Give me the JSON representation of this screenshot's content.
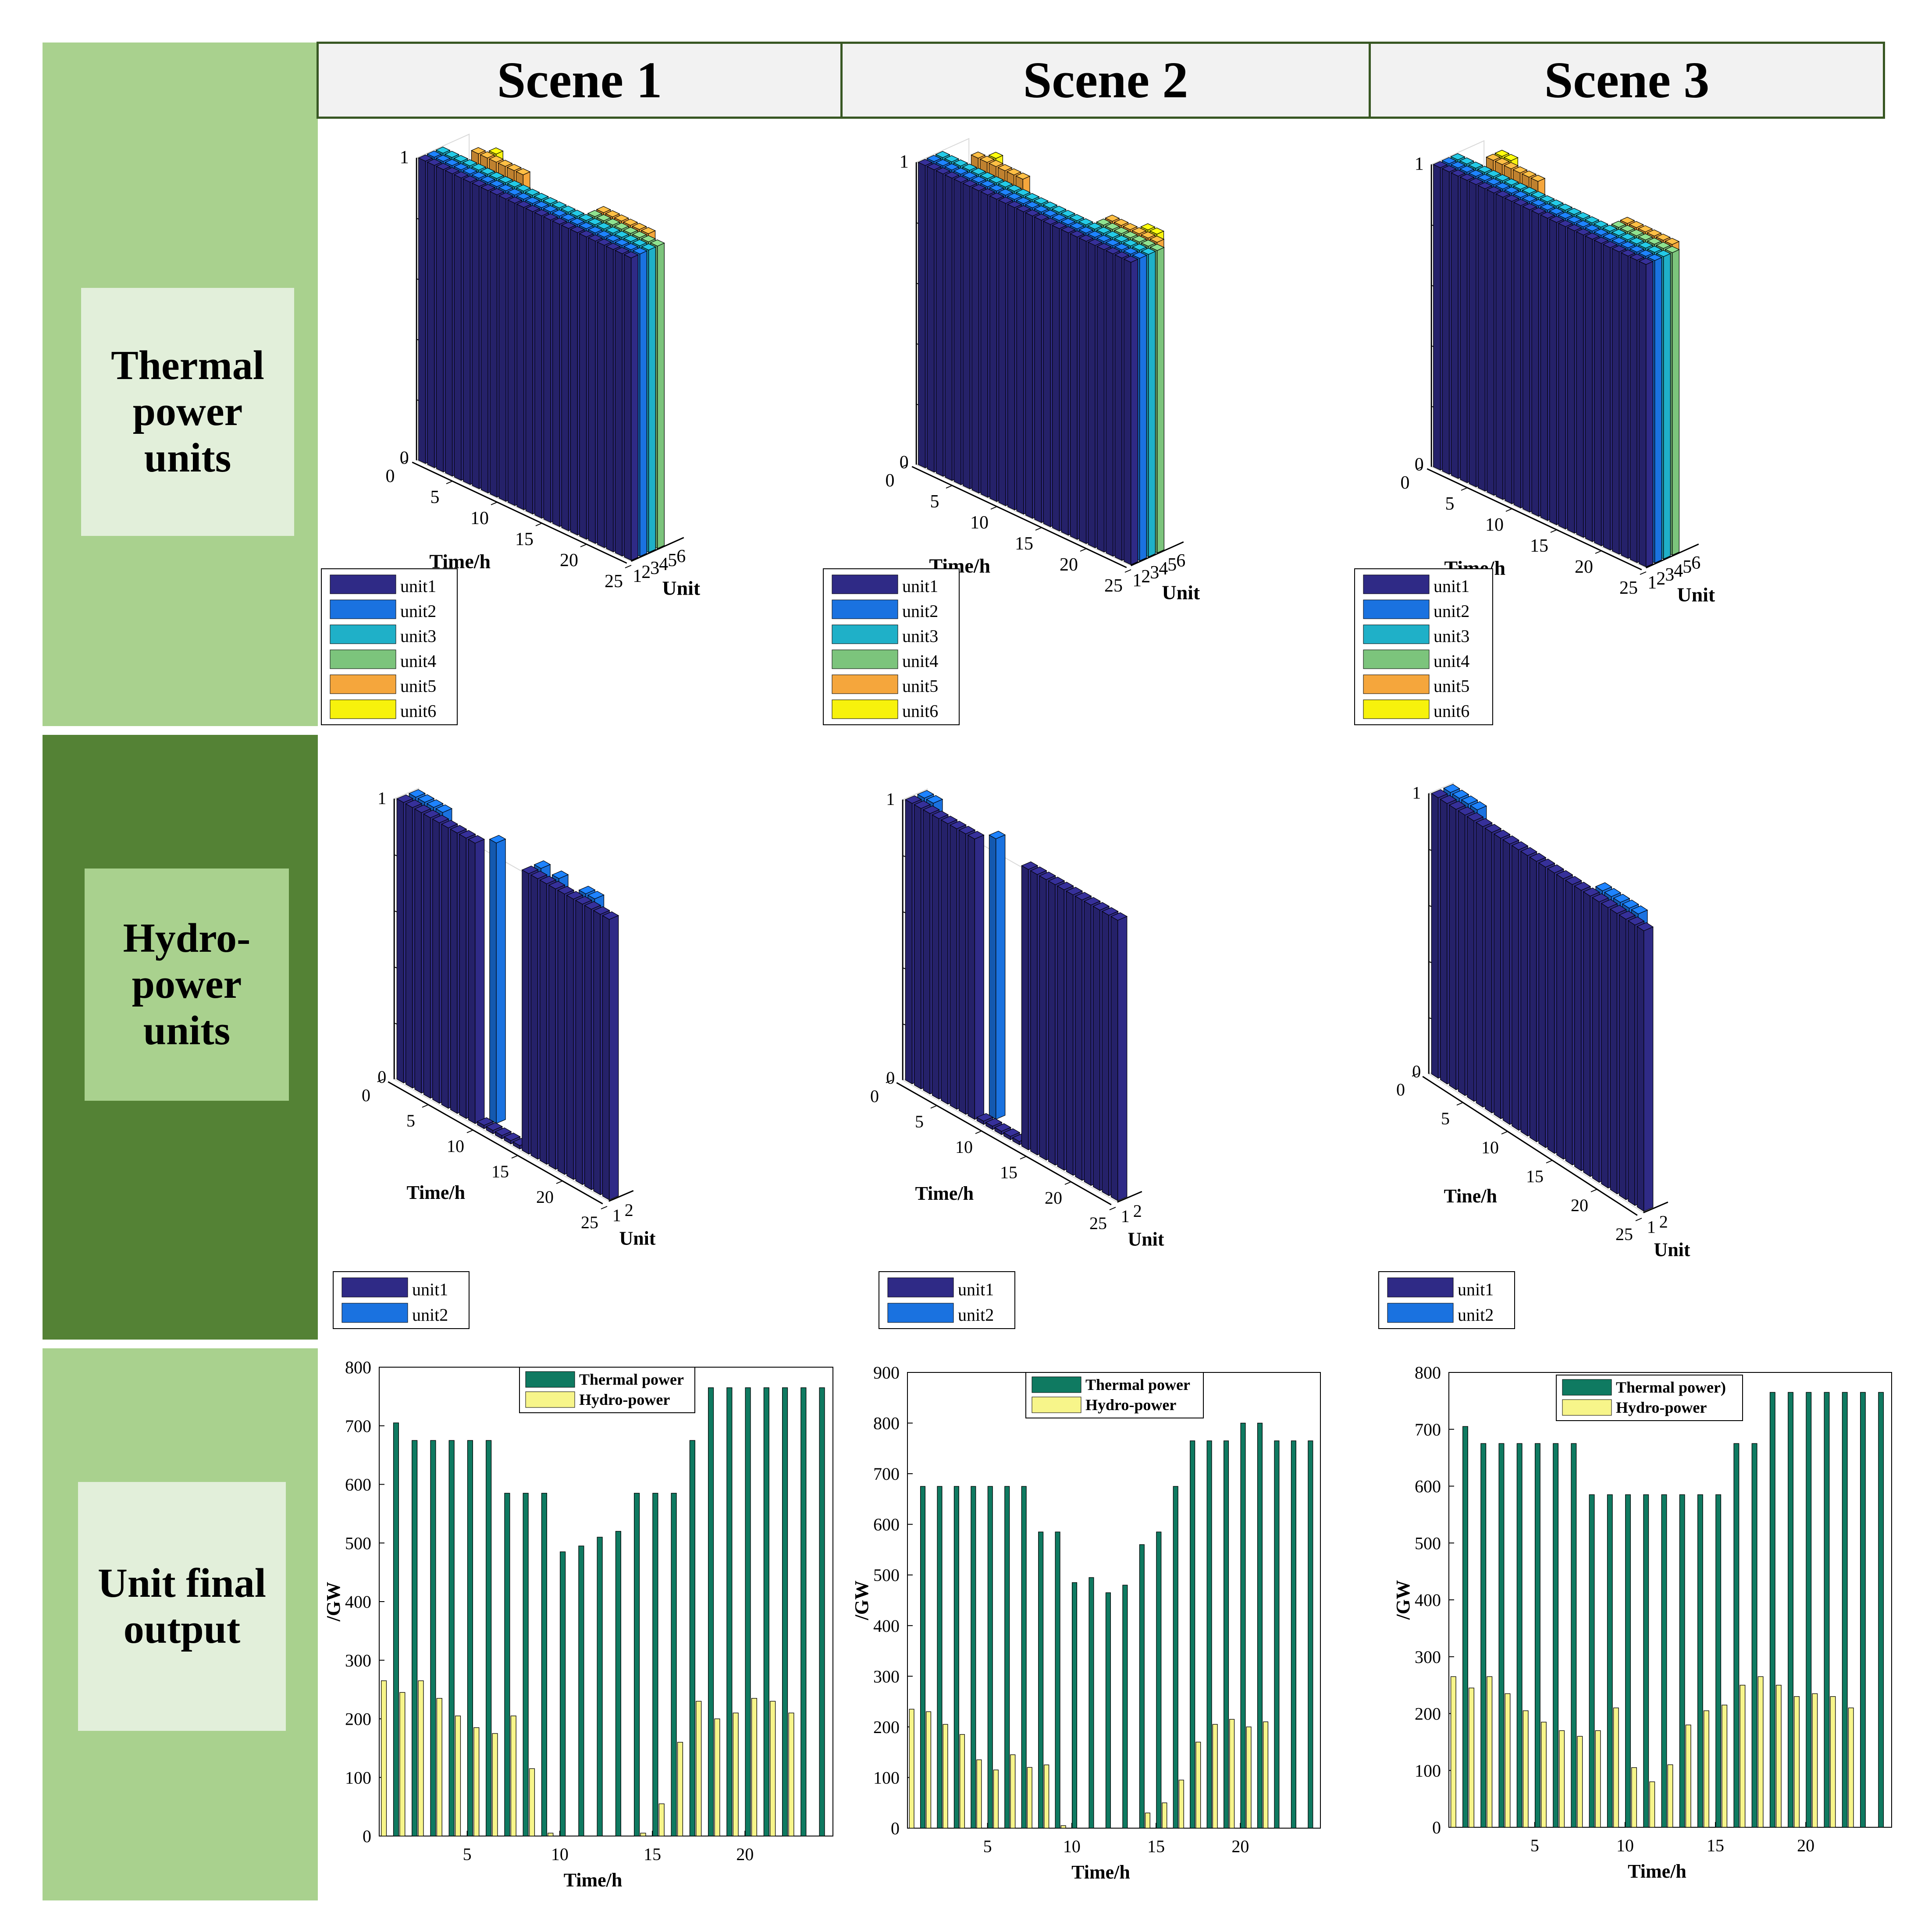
{
  "scenes": [
    "Scene 1",
    "Scene 2",
    "Scene 3"
  ],
  "rows": [
    {
      "label": "Thermal power units",
      "lines": [
        "Thermal",
        "power",
        "units"
      ]
    },
    {
      "label": "Hydro-power units",
      "lines": [
        "Hydro-",
        "power",
        "units"
      ]
    },
    {
      "label": "Unit final output",
      "lines": [
        "Unit final",
        "output"
      ]
    }
  ],
  "colors": {
    "row_light": "#a9d18e",
    "row_dark": "#548235",
    "box_light": "#e2efda",
    "header_bg": "#f2f2f2",
    "unit1": "#2f2a86",
    "unit2": "#1a72e0",
    "unit3": "#1fb0c8",
    "unit4": "#7cc47c",
    "unit5": "#f5a63c",
    "unit6": "#f7f20c",
    "thermal": "#0f7a61",
    "hydro": "#f7f58a"
  },
  "chart_data": [
    {
      "id": "thermal-scene1",
      "type": "bar3d",
      "scene": "Scene 1",
      "x_label": "Time/h",
      "y_label": "Unit",
      "x_ticks": [
        "0",
        "5",
        "10",
        "15",
        "20",
        "25"
      ],
      "y_ticks": [
        "1",
        "2",
        "3",
        "4",
        "5",
        "6"
      ],
      "z_ticks": [
        "0",
        "1"
      ],
      "legend": [
        "unit1",
        "unit2",
        "unit3",
        "unit4",
        "unit5",
        "unit6"
      ],
      "hours": 24,
      "on": {
        "unit1": [
          1,
          24
        ],
        "unit2": [
          1,
          24
        ],
        "unit3": [
          1,
          24
        ],
        "unit4": [
          17,
          24
        ],
        "unit5": [
          [
            3,
            8
          ],
          [
            17,
            22
          ]
        ],
        "unit6": [
          [
            4,
            4
          ]
        ]
      }
    },
    {
      "id": "thermal-scene2",
      "type": "bar3d",
      "scene": "Scene 2",
      "x_label": "Time/h",
      "y_label": "Unit",
      "x_ticks": [
        "0",
        "5",
        "10",
        "15",
        "20",
        "25"
      ],
      "y_ticks": [
        "1",
        "2",
        "3",
        "4",
        "5",
        "6"
      ],
      "z_ticks": [
        "0",
        "1"
      ],
      "legend": [
        "unit1",
        "unit2",
        "unit3",
        "unit4",
        "unit5",
        "unit6"
      ],
      "hours": 24,
      "on": {
        "unit1": [
          1,
          24
        ],
        "unit2": [
          1,
          24
        ],
        "unit3": [
          1,
          24
        ],
        "unit4": [
          18,
          24
        ],
        "unit5": [
          [
            3,
            8
          ],
          [
            18,
            23
          ]
        ],
        "unit6": [
          [
            4,
            4
          ],
          [
            21,
            22
          ]
        ]
      }
    },
    {
      "id": "thermal-scene3",
      "type": "bar3d",
      "scene": "Scene 3",
      "x_label": "Time/h",
      "y_label": "Unit",
      "x_ticks": [
        "0",
        "5",
        "10",
        "15",
        "20",
        "25"
      ],
      "y_ticks": [
        "1",
        "2",
        "3",
        "4",
        "5",
        "6"
      ],
      "z_ticks": [
        "0",
        "1"
      ],
      "legend": [
        "unit1",
        "unit2",
        "unit3",
        "unit4",
        "unit5",
        "unit6"
      ],
      "hours": 24,
      "on": {
        "unit1": [
          1,
          24
        ],
        "unit2": [
          1,
          24
        ],
        "unit3": [
          1,
          24
        ],
        "unit4": [
          18,
          24
        ],
        "unit5": [
          [
            3,
            8
          ],
          [
            18,
            23
          ]
        ],
        "unit6": [
          [
            3,
            4
          ]
        ]
      }
    },
    {
      "id": "hydro-scene1",
      "type": "bar3d",
      "scene": "Scene 1",
      "x_label": "Time/h",
      "y_label": "Unit",
      "x_ticks": [
        "0",
        "5",
        "10",
        "15",
        "20",
        "25"
      ],
      "y_ticks": [
        "1",
        "2"
      ],
      "z_ticks": [
        "0",
        "1"
      ],
      "legend": [
        "unit1",
        "unit2"
      ],
      "hours": 24,
      "on": {
        "unit1": [
          [
            1,
            9
          ],
          [
            15,
            24
          ]
        ],
        "unit2": [
          [
            1,
            4
          ],
          [
            10,
            10
          ],
          [
            15,
            15
          ],
          [
            17,
            17
          ],
          [
            20,
            21
          ]
        ]
      }
    },
    {
      "id": "hydro-scene2",
      "type": "bar3d",
      "scene": "Scene 2",
      "x_label": "Time/h",
      "y_label": "Unit",
      "x_ticks": [
        "0",
        "5",
        "10",
        "15",
        "20",
        "25"
      ],
      "y_ticks": [
        "1",
        "2"
      ],
      "z_ticks": [
        "0",
        "1"
      ],
      "legend": [
        "unit1",
        "unit2"
      ],
      "hours": 24,
      "on": {
        "unit1": [
          [
            1,
            8
          ],
          [
            14,
            24
          ]
        ],
        "unit2": [
          [
            1,
            2
          ],
          [
            9,
            9
          ]
        ]
      }
    },
    {
      "id": "hydro-scene3",
      "type": "bar3d",
      "scene": "Scene 3",
      "x_label": "Tine/h",
      "y_label": "Unit",
      "x_ticks": [
        "0",
        "5",
        "10",
        "15",
        "20",
        "25"
      ],
      "y_ticks": [
        "1",
        "2"
      ],
      "z_ticks": [
        "0",
        "1"
      ],
      "legend": [
        "unit1",
        "unit2"
      ],
      "hours": 24,
      "on": {
        "unit1": [
          [
            1,
            24
          ]
        ],
        "unit2": [
          [
            1,
            4
          ],
          [
            18,
            22
          ]
        ]
      }
    },
    {
      "id": "output-scene1",
      "type": "bar",
      "scene": "Scene 1",
      "xlabel": "Time/h",
      "ylabel": "/GW",
      "ylim": [
        0,
        800
      ],
      "y_ticks": [
        0,
        100,
        200,
        300,
        400,
        500,
        600,
        700,
        800
      ],
      "x_ticks": [
        5,
        10,
        15,
        20
      ],
      "series": [
        {
          "name": "Thermal power",
          "values": [
            705,
            675,
            675,
            675,
            675,
            675,
            585,
            585,
            585,
            485,
            495,
            510,
            520,
            585,
            585,
            585,
            675,
            765,
            765,
            765,
            765,
            765,
            765,
            765
          ]
        },
        {
          "name": "Hydro-power",
          "values": [
            265,
            245,
            265,
            235,
            205,
            185,
            175,
            205,
            115,
            5,
            0,
            0,
            0,
            0,
            5,
            55,
            160,
            230,
            200,
            210,
            235,
            230,
            210,
            0
          ]
        }
      ]
    },
    {
      "id": "output-scene2",
      "type": "bar",
      "scene": "Scene 2",
      "xlabel": "Time/h",
      "ylabel": "/GW",
      "ylim": [
        0,
        900
      ],
      "y_ticks": [
        0,
        100,
        200,
        300,
        400,
        500,
        600,
        700,
        800,
        900
      ],
      "x_ticks": [
        5,
        10,
        15,
        20
      ],
      "series": [
        {
          "name": "Thermal power",
          "values": [
            675,
            675,
            675,
            675,
            675,
            675,
            675,
            585,
            585,
            485,
            495,
            465,
            480,
            560,
            585,
            675,
            765,
            765,
            765,
            800,
            800,
            765,
            765,
            765
          ]
        },
        {
          "name": "Hydro-power",
          "values": [
            235,
            230,
            205,
            185,
            135,
            115,
            145,
            120,
            125,
            5,
            0,
            0,
            0,
            0,
            30,
            50,
            95,
            170,
            205,
            215,
            200,
            210,
            0,
            0
          ]
        }
      ]
    },
    {
      "id": "output-scene3",
      "type": "bar",
      "scene": "Scene 3",
      "xlabel": "Time/h",
      "ylabel": "/GW",
      "ylim": [
        0,
        800
      ],
      "y_ticks": [
        0,
        100,
        200,
        300,
        400,
        500,
        600,
        700,
        800
      ],
      "x_ticks": [
        5,
        10,
        15,
        20
      ],
      "series": [
        {
          "name": "Thermal power)",
          "values": [
            705,
            675,
            675,
            675,
            675,
            675,
            675,
            585,
            585,
            585,
            585,
            585,
            585,
            585,
            585,
            675,
            675,
            765,
            765,
            765,
            765,
            765,
            765,
            765
          ]
        },
        {
          "name": "Hydro-power",
          "values": [
            265,
            245,
            265,
            235,
            205,
            185,
            170,
            160,
            170,
            210,
            105,
            80,
            110,
            180,
            205,
            215,
            250,
            265,
            250,
            230,
            235,
            230,
            210,
            0
          ]
        }
      ]
    }
  ]
}
